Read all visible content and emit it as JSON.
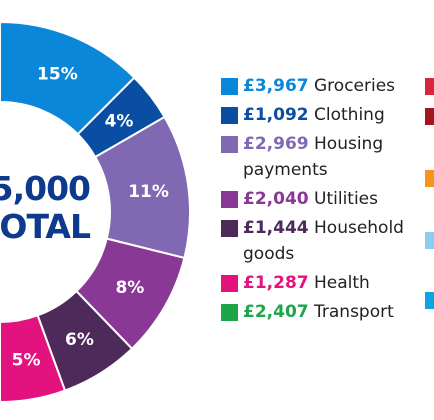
{
  "chart_data": {
    "type": "donut",
    "center": {
      "line1": "5,000",
      "line2": "OTAL"
    },
    "series": [
      {
        "label": "Groceries",
        "amount": "£3,967",
        "percent": 15,
        "percent_label": "15%",
        "color": "#0b87d9"
      },
      {
        "label": "Clothing",
        "amount": "£1,092",
        "percent": 4,
        "percent_label": "4%",
        "color": "#0a4ea4"
      },
      {
        "label": "Housing payments",
        "amount": "£2,969",
        "percent": 11,
        "percent_label": "11%",
        "color": "#8068b3"
      },
      {
        "label": "Utilities",
        "amount": "£2,040",
        "percent": 8,
        "percent_label": "8%",
        "color": "#8a3896"
      },
      {
        "label": "Household goods",
        "amount": "£1,444",
        "percent": 6,
        "percent_label": "6%",
        "color": "#4e2a5b"
      },
      {
        "label": "Health",
        "amount": "£1,287",
        "percent": 5,
        "percent_label": "5%",
        "color": "#e2137e"
      },
      {
        "label": "Transport",
        "amount": "£2,407",
        "percent": null,
        "percent_label": "",
        "color": "#1ea54a"
      }
    ],
    "edge_segment_color": "#0ea4e3",
    "right_edge_swatches": [
      "#d7263d",
      "#a3161e",
      "#f7941d",
      "#89cdf0",
      "#0ea4e3"
    ]
  }
}
